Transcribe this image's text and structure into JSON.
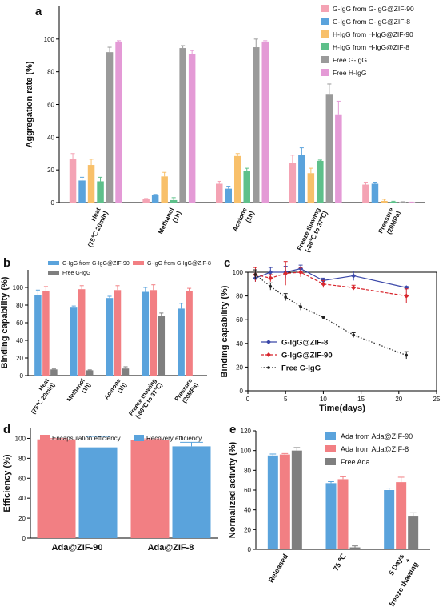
{
  "panels": [
    {
      "label": "a",
      "chart_data": {
        "type": "bar",
        "ylabel": "Aggregation rate (%)",
        "ylim": [
          0,
          120
        ],
        "yticks": [
          0,
          20,
          40,
          60,
          80,
          100
        ],
        "categories": [
          "Heat (75℃ 20min)",
          "Methanol (1h)",
          "Acetone (1h)",
          "Freeze thawing (-80℃ to 37℃)",
          "Pressure (20MPa)"
        ],
        "category_lines": [
          [
            "Heat",
            "(75℃ 20min)"
          ],
          [
            "Methanol",
            "(1h)"
          ],
          [
            "Acetone",
            "(1h)"
          ],
          [
            "Freeze thawing",
            "(-80℃ to 37℃)"
          ],
          [
            "Pressure",
            "(20MPa)"
          ]
        ],
        "series": [
          {
            "name": "G-IgG from G-IgG@ZIF-90",
            "color": "#f4a3b4",
            "values": [
              26.5,
              2.0,
              11.5,
              24.0,
              11.0
            ],
            "errors": [
              3.5,
              0.5,
              1.5,
              5.0,
              1.5
            ]
          },
          {
            "name": "G-IgG from G-IgG@ZIF-8",
            "color": "#5aa3dc",
            "values": [
              13.5,
              4.5,
              8.5,
              29.0,
              11.5
            ],
            "errors": [
              2.0,
              0.5,
              1.5,
              4.5,
              1.0
            ]
          },
          {
            "name": "H-IgG from H-IgG@ZIF-90",
            "color": "#f8c06a",
            "values": [
              23.0,
              16.0,
              28.5,
              18.0,
              1.0
            ],
            "errors": [
              3.5,
              2.5,
              1.5,
              3.0,
              1.0
            ]
          },
          {
            "name": "H-IgG from H-IgG@ZIF-8",
            "color": "#5ec08a",
            "values": [
              13.0,
              1.5,
              19.5,
              25.5,
              0.5
            ],
            "errors": [
              2.5,
              1.5,
              1.5,
              0.5,
              0.3
            ]
          },
          {
            "name": "Free G-IgG",
            "color": "#9a9a9a",
            "values": [
              92.0,
              94.5,
              95.0,
              66.0,
              0.3
            ],
            "errors": [
              3.0,
              1.5,
              5.0,
              6.5,
              0.2
            ]
          },
          {
            "name": "Free H-IgG",
            "color": "#e49ad6",
            "values": [
              98.5,
              91.0,
              98.5,
              54.0,
              0.2
            ],
            "errors": [
              0.5,
              2.0,
              0.5,
              8.0,
              0.1
            ]
          }
        ]
      }
    },
    {
      "label": "b",
      "chart_data": {
        "type": "bar",
        "ylabel": "Binding capability (%)",
        "ylim": [
          0,
          120
        ],
        "yticks": [
          0,
          20,
          40,
          60,
          80,
          100
        ],
        "categories": [
          "Heat (75℃ 20min)",
          "Methanol (1h)",
          "Acetone (1h)",
          "Freeze thawing (-80℃ to 37℃)",
          "Pressure (20MPa)"
        ],
        "category_lines": [
          [
            "Heat",
            "(75℃ 20min)"
          ],
          [
            "Methanol",
            "(1h)"
          ],
          [
            "Acetone",
            "(1h)"
          ],
          [
            "Freeze thawing",
            "(-80℃ to 37℃)"
          ],
          [
            "Pressure",
            "(20MPa)"
          ]
        ],
        "series": [
          {
            "name": "G-IgG from G-IgG@ZIF-90",
            "color": "#5aa3dc",
            "values": [
              91,
              78,
              88,
              95,
              76
            ],
            "errors": [
              6,
              1,
              2,
              5,
              6
            ]
          },
          {
            "name": "G-IgG from G-IgG@ZIF-8",
            "color": "#f27f83",
            "values": [
              96,
              98,
              97,
              97,
              96
            ],
            "errors": [
              5,
              4,
              5,
              6,
              3
            ]
          },
          {
            "name": "Free G-IgG",
            "color": "#7f7f7f",
            "values": [
              7,
              6,
              8,
              68,
              0
            ],
            "errors": [
              0.5,
              0.5,
              2,
              3,
              0
            ]
          }
        ]
      }
    },
    {
      "label": "c",
      "chart_data": {
        "type": "line",
        "xlabel": "Time(days)",
        "ylabel": "Binding capability (%)",
        "xlim": [
          0,
          25
        ],
        "ylim": [
          0,
          100
        ],
        "xticks": [
          0,
          5,
          10,
          15,
          20,
          25
        ],
        "yticks": [
          0,
          20,
          40,
          60,
          80,
          100
        ],
        "series": [
          {
            "name": "G-IgG@ZIF-8",
            "color": "#3a47a8",
            "dash": "solid",
            "marker": "diamond",
            "x": [
              1,
              3,
              5,
              7,
              10,
              14,
              21
            ],
            "y": [
              95,
              100,
              100,
              103,
              93,
              97,
              87
            ],
            "errors": [
              3,
              4,
              5,
              3,
              2,
              4,
              1
            ]
          },
          {
            "name": "G-IgG@ZIF-90",
            "color": "#d8262d",
            "dash": "dash",
            "marker": "diamond",
            "x": [
              1,
              3,
              5,
              7,
              10,
              14,
              21
            ],
            "y": [
              98,
              95,
              99,
              100,
              90,
              87,
              80
            ],
            "errors": [
              6,
              3,
              10,
              4,
              3,
              2,
              6
            ]
          },
          {
            "name": "Free G-IgG",
            "color": "#222222",
            "dash": "dot",
            "marker": "circle",
            "x": [
              1,
              3,
              5,
              7,
              10,
              14,
              21
            ],
            "y": [
              98,
              88,
              79,
              71,
              62,
              47,
              30
            ],
            "errors": [
              4,
              3,
              3,
              3,
              1,
              2,
              3
            ]
          }
        ]
      }
    },
    {
      "label": "d",
      "chart_data": {
        "type": "bar",
        "ylabel": "Efficiency (%)",
        "ylim": [
          0,
          110
        ],
        "yticks": [
          0,
          20,
          40,
          60,
          80,
          100
        ],
        "categories": [
          "Ada@ZIF-90",
          "Ada@ZIF-8"
        ],
        "series": [
          {
            "name": "Encapsulation efficiency",
            "color": "#f27f83",
            "values": [
              99,
              98
            ],
            "errors": [
              0.8,
              1.5
            ]
          },
          {
            "name": "Recovery efficiency",
            "color": "#5aa3dc",
            "values": [
              91,
              92
            ],
            "errors": [
              11,
              4
            ]
          }
        ]
      }
    },
    {
      "label": "e",
      "chart_data": {
        "type": "bar",
        "ylabel": "Normalized activity (%)",
        "ylim": [
          0,
          120
        ],
        "yticks": [
          0,
          20,
          40,
          60,
          80,
          100,
          120
        ],
        "categories": [
          "Released",
          "75 ℃",
          "5 Days freeze thawing"
        ],
        "category_lines": [
          [
            "Released"
          ],
          [
            "75 ℃"
          ],
          [
            "5 Days",
            "+",
            "freeze thawing"
          ]
        ],
        "series": [
          {
            "name": "Ada from Ada@ZIF-90",
            "color": "#5aa3dc",
            "values": [
              95,
              67,
              60
            ],
            "errors": [
              1.5,
              1.5,
              2
            ]
          },
          {
            "name": "Ada from Ada@ZIF-8",
            "color": "#f27f83",
            "values": [
              96,
              71,
              68
            ],
            "errors": [
              1,
              2.5,
              5
            ]
          },
          {
            "name": "Free Ada",
            "color": "#7f7f7f",
            "values": [
              100,
              2,
              34
            ],
            "errors": [
              3,
              1.5,
              3
            ]
          }
        ]
      }
    }
  ]
}
